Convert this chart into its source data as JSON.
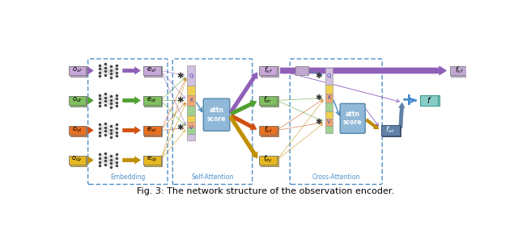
{
  "title": "Fig. 3: The network structure of the observation encoder.",
  "fig_width": 6.4,
  "fig_height": 2.8,
  "dpi": 100,
  "input_labels": [
    "$o_{sf}$",
    "$o_{dr}$",
    "$o_{st}$",
    "$o_{dy}$"
  ],
  "embed_labels": [
    "$e_{sf}$",
    "$e_{dr}$",
    "$e_{st}$",
    "$e_{dy}$"
  ],
  "feat_labels": [
    "$f_{sf}$",
    "$f_{dr}$",
    "$f_{st}$",
    "$f_{dy}$"
  ],
  "row_colors": [
    "#c8a8d8",
    "#80c060",
    "#e87020",
    "#e8b820"
  ],
  "arrow_colors": [
    "#9060b8",
    "#50a030",
    "#d05010",
    "#c09000"
  ],
  "attn_color": "#90b8d8",
  "border_color": "#5090c8",
  "plus_color": "#4488cc",
  "f_color": "#88ccc8",
  "fat_color": "#6080a8",
  "fsf_out_color": "#c0a8d0"
}
